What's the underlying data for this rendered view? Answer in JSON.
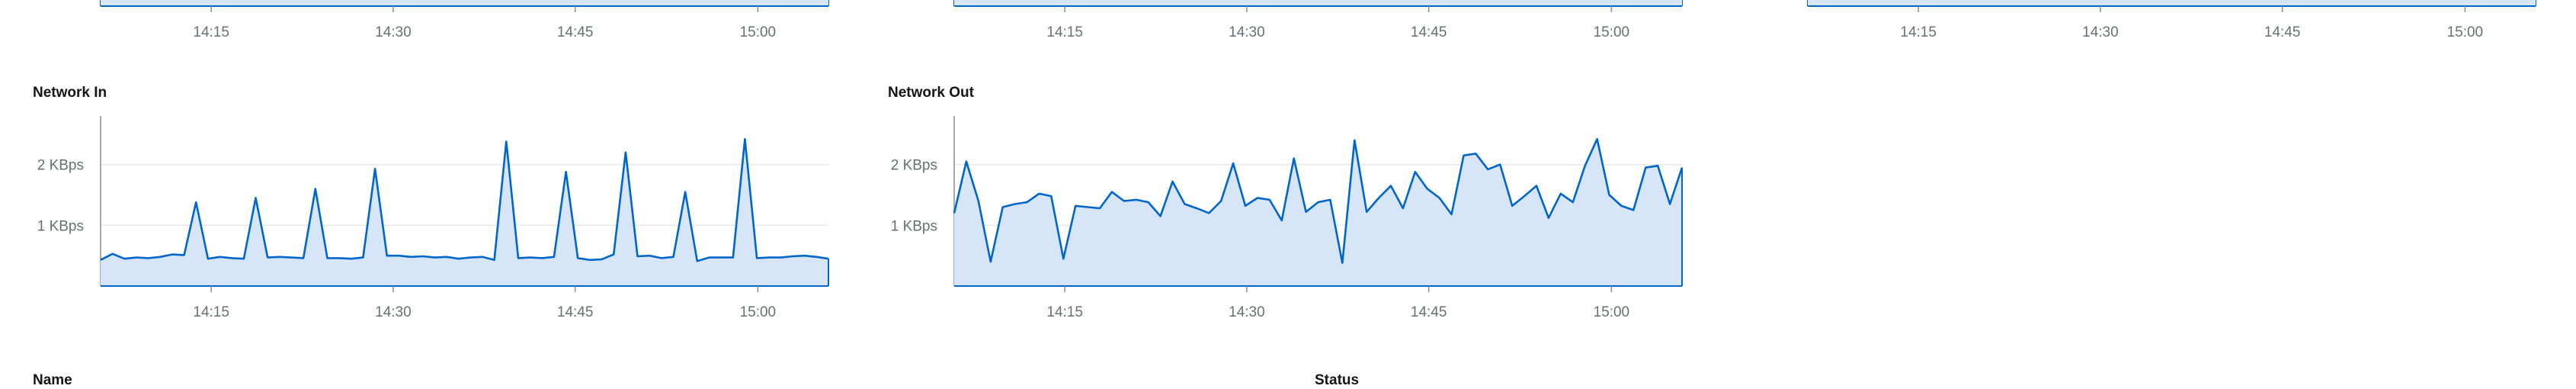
{
  "sections": {
    "name_heading": "Name",
    "status_heading": "Status"
  },
  "chart_data": [
    {
      "id": "top-1",
      "type": "area",
      "title": "",
      "x_ticks": [
        "14:15",
        "14:30",
        "14:45",
        "15:00"
      ],
      "y_ticks": [],
      "series": []
    },
    {
      "id": "top-2",
      "type": "area",
      "title": "",
      "x_ticks": [
        "14:15",
        "14:30",
        "14:45",
        "15:00"
      ],
      "y_ticks": [],
      "series": []
    },
    {
      "id": "top-3",
      "type": "area",
      "title": "",
      "x_ticks": [
        "14:15",
        "14:30",
        "14:45",
        "15:00"
      ],
      "y_ticks": [],
      "series": []
    },
    {
      "id": "network-in",
      "type": "area",
      "title": "Network In",
      "y_unit": "KBps",
      "y_ticks": [
        "1 KBps",
        "2 KBps"
      ],
      "x_ticks": [
        "14:15",
        "14:30",
        "14:45",
        "15:00"
      ],
      "ylim": [
        0,
        2.8
      ],
      "series": [
        {
          "values": [
            0.43,
            0.53,
            0.45,
            0.47,
            0.46,
            0.48,
            0.52,
            0.51,
            1.38,
            0.45,
            0.48,
            0.46,
            0.45,
            1.45,
            0.47,
            0.48,
            0.47,
            0.46,
            1.6,
            0.46,
            0.46,
            0.45,
            0.47,
            1.93,
            0.5,
            0.5,
            0.48,
            0.49,
            0.47,
            0.48,
            0.45,
            0.47,
            0.48,
            0.43,
            2.38,
            0.46,
            0.47,
            0.46,
            0.48,
            1.88,
            0.46,
            0.43,
            0.44,
            0.52,
            2.2,
            0.49,
            0.5,
            0.46,
            0.48,
            1.55,
            0.41,
            0.47,
            0.47,
            0.47,
            2.42,
            0.46,
            0.47,
            0.47,
            0.49,
            0.5,
            0.48,
            0.45
          ]
        }
      ]
    },
    {
      "id": "network-out",
      "type": "area",
      "title": "Network Out",
      "y_unit": "KBps",
      "y_ticks": [
        "1 KBps",
        "2 KBps"
      ],
      "x_ticks": [
        "14:15",
        "14:30",
        "14:45",
        "15:00"
      ],
      "ylim": [
        0,
        2.8
      ],
      "series": [
        {
          "values": [
            1.2,
            2.05,
            1.4,
            0.4,
            1.3,
            1.35,
            1.38,
            1.52,
            1.48,
            0.45,
            1.32,
            1.3,
            1.28,
            1.55,
            1.4,
            1.42,
            1.38,
            1.15,
            1.72,
            1.35,
            1.28,
            1.2,
            1.4,
            2.02,
            1.32,
            1.45,
            1.42,
            1.08,
            2.1,
            1.22,
            1.38,
            1.42,
            0.38,
            2.4,
            1.22,
            1.45,
            1.65,
            1.28,
            1.88,
            1.6,
            1.45,
            1.18,
            2.15,
            2.18,
            1.92,
            2.0,
            1.32,
            1.48,
            1.65,
            1.12,
            1.52,
            1.38,
            1.98,
            2.42,
            1.5,
            1.32,
            1.25,
            1.95,
            1.98,
            1.35,
            1.95
          ]
        }
      ]
    }
  ],
  "colors": {
    "line": "#0066cc",
    "fill": "#d6e5f7",
    "axis": "#8a8d90",
    "grid": "#e8e8e8",
    "tick_text": "#6a6e73"
  }
}
